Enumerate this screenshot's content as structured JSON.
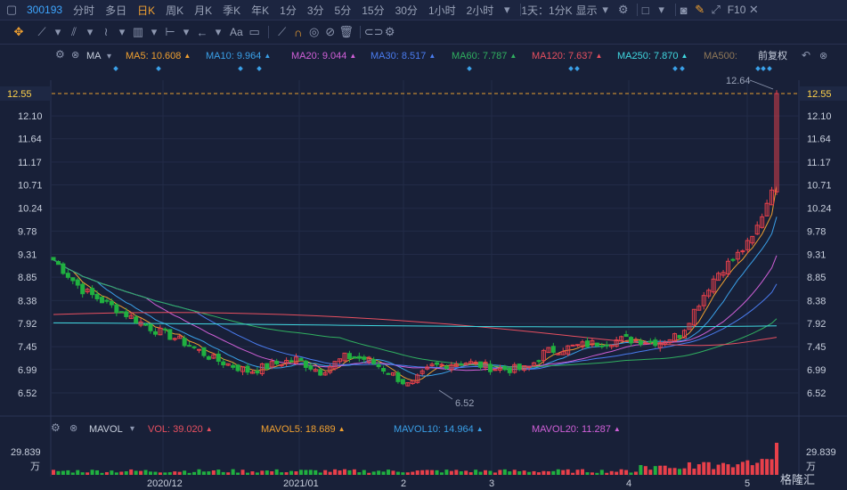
{
  "toolbar": {
    "code": "300193",
    "periods": [
      "分时",
      "多日",
      "日K",
      "周K",
      "月K",
      "季K",
      "年K",
      "1分",
      "3分",
      "5分",
      "15分",
      "30分",
      "1小时",
      "2小时"
    ],
    "active_period": "日K",
    "combo": "1天：1分K",
    "display": "显示",
    "f10": "F10"
  },
  "drawbar": {
    "text_tool": "Aa"
  },
  "ma_legend": {
    "title": "MA",
    "items": [
      {
        "label": "MA5: 10.608",
        "color": "#f0a030"
      },
      {
        "label": "MA10: 9.964",
        "color": "#3aa0e8"
      },
      {
        "label": "MA20: 9.044",
        "color": "#d060d8"
      },
      {
        "label": "MA30: 8.517",
        "color": "#4a7cf0"
      },
      {
        "label": "MA60: 7.787",
        "color": "#30b060"
      },
      {
        "label": "MA120: 7.637",
        "color": "#e85060"
      },
      {
        "label": "MA250: 7.870",
        "color": "#40d8e0"
      },
      {
        "label": "MA500:",
        "color": "#907858"
      }
    ],
    "adjust": "前复权"
  },
  "price_axis": {
    "ticks": [
      "12.10",
      "11.64",
      "11.17",
      "10.71",
      "10.24",
      "9.78",
      "9.31",
      "8.85",
      "8.38",
      "7.92",
      "7.45",
      "6.99",
      "6.52"
    ],
    "current_price": "12.55",
    "high_label": "12.64",
    "low_label": "6.52"
  },
  "mavol_legend": {
    "title": "MAVOL",
    "items": [
      {
        "label": "VOL: 39.020",
        "color": "#e85060"
      },
      {
        "label": "MAVOL5: 18.689",
        "color": "#f0a030"
      },
      {
        "label": "MAVOL10: 14.964",
        "color": "#3aa0e8"
      },
      {
        "label": "MAVOL20: 11.287",
        "color": "#d060d8"
      }
    ]
  },
  "vol_axis": {
    "top": "29.839",
    "unit": "万"
  },
  "x_axis": [
    "2020/12",
    "2021/01",
    "2",
    "3",
    "4",
    "5"
  ],
  "watermark": "格隆汇",
  "colors": {
    "up": "#e8404a",
    "down": "#20b040",
    "accent": "#f0a030",
    "bg": "#182038"
  }
}
